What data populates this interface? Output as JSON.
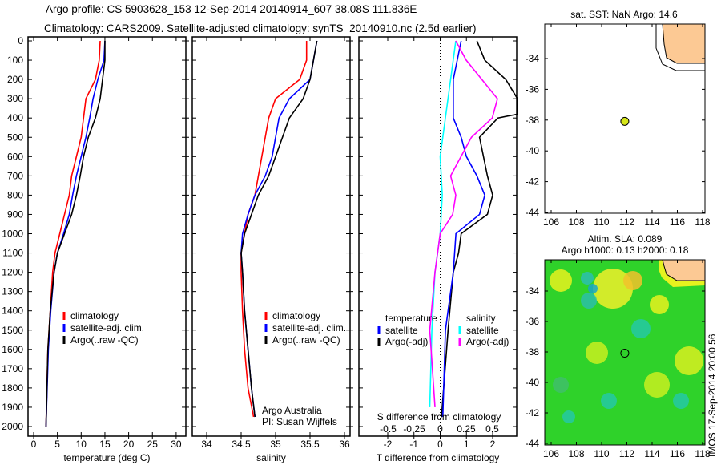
{
  "title": {
    "line1": "Argo profile: CS 5903628_153 12-Sep-2014 20140914_607 38.08S 111.836E",
    "line2": "Climatology: CARS2009. Satellite-adjusted climatology: synTS_20140910.nc (2.5d earlier)"
  },
  "colors": {
    "climatology": "#ff0000",
    "satellite": "#0000ff",
    "argo": "#000000",
    "s_satellite": "#00ffff",
    "s_argo": "#ff00ff",
    "land": "#fcc994"
  },
  "chart_data": [
    {
      "type": "line",
      "name": "temperature",
      "xlabel": "temperature (deg C)",
      "xlim": [
        -1.5,
        31
      ],
      "xticks": [
        "0",
        "5",
        "10",
        "15",
        "20",
        "25",
        "30"
      ],
      "ylim": [
        0,
        2060
      ],
      "yticks": [
        "0",
        "100",
        "200",
        "300",
        "400",
        "500",
        "600",
        "700",
        "800",
        "900",
        "1000",
        "1100",
        "1200",
        "1300",
        "1400",
        "1500",
        "1600",
        "1700",
        "1800",
        "1900",
        "2000"
      ],
      "legend": [
        "climatology",
        "satellite-adj. clim.",
        "Argo(..raw -QC)"
      ],
      "series": [
        {
          "name": "climatology",
          "depth": [
            0,
            100,
            200,
            300,
            400,
            500,
            600,
            700,
            800,
            900,
            1000,
            1100,
            1200,
            1400,
            1600,
            2000
          ],
          "values": [
            14,
            13.8,
            13,
            11,
            10.5,
            10,
            9,
            8,
            7.5,
            6.5,
            5.5,
            4.5,
            4,
            3.5,
            3,
            2.6
          ]
        },
        {
          "name": "satellite",
          "depth": [
            0,
            100,
            200,
            300,
            400,
            500,
            600,
            700,
            800,
            900,
            1000,
            1100,
            1200,
            1400,
            1600,
            2000
          ],
          "values": [
            15,
            14.8,
            13.5,
            12.5,
            11.8,
            11,
            10,
            9,
            8.2,
            7.5,
            6.3,
            5,
            4.3,
            3.6,
            3.1,
            2.6
          ]
        },
        {
          "name": "argo",
          "depth": [
            0,
            100,
            200,
            300,
            400,
            500,
            600,
            700,
            800,
            900,
            1000,
            1100,
            1200,
            1400,
            1600,
            2000
          ],
          "values": [
            15,
            15,
            14.5,
            14,
            13,
            11.5,
            10.5,
            9.8,
            9,
            8,
            6.5,
            5,
            4.3,
            3.5,
            3,
            2.6
          ]
        }
      ]
    },
    {
      "type": "line",
      "name": "salinity",
      "xlabel": "salinity",
      "xlim": [
        33.8,
        36.1
      ],
      "xticks": [
        "34",
        "34.5",
        "35",
        "35.5",
        "36"
      ],
      "legend": [
        "climatology",
        "satellite-adj. clim.",
        "Argo(..raw -QC)"
      ],
      "annotation": [
        "Argo Australia",
        "PI: Susan Wijffels"
      ],
      "series": [
        {
          "name": "climatology",
          "depth": [
            0,
            100,
            200,
            300,
            400,
            500,
            600,
            700,
            800,
            900,
            1000,
            1100,
            1200,
            1400,
            1600,
            1800,
            1950
          ],
          "values": [
            35.45,
            35.45,
            35.35,
            35.0,
            34.9,
            34.85,
            34.8,
            34.75,
            34.7,
            34.6,
            34.55,
            34.5,
            34.5,
            34.52,
            34.55,
            34.6,
            34.68
          ]
        },
        {
          "name": "satellite",
          "depth": [
            0,
            100,
            200,
            300,
            400,
            500,
            600,
            700,
            800,
            900,
            1000,
            1100,
            1200,
            1400,
            1600,
            1800,
            1950
          ],
          "values": [
            35.6,
            35.55,
            35.5,
            35.2,
            35.05,
            35.0,
            34.95,
            34.85,
            34.7,
            34.6,
            34.52,
            34.5,
            34.52,
            34.55,
            34.6,
            34.65,
            34.7
          ]
        },
        {
          "name": "argo",
          "depth": [
            0,
            100,
            200,
            300,
            400,
            500,
            600,
            700,
            800,
            900,
            1000,
            1100,
            1200,
            1400,
            1600,
            1800,
            1950
          ],
          "values": [
            35.6,
            35.55,
            35.5,
            35.4,
            35.2,
            35.1,
            35.0,
            34.9,
            34.75,
            34.65,
            34.55,
            34.5,
            34.52,
            34.55,
            34.6,
            34.65,
            34.7
          ]
        }
      ]
    },
    {
      "type": "line",
      "name": "difference",
      "xlabel": "T difference from climatology",
      "xlabel_top": "S difference from climatology",
      "xlim": [
        -3,
        3
      ],
      "xticks": [
        "-2",
        "-1",
        "0",
        "1",
        "2"
      ],
      "xticks_s": [
        "-0.5",
        "-0.25",
        "0",
        "0.25",
        "0.5"
      ],
      "legend": {
        "temperature": "temperature",
        "salinity": "salinity",
        "t_sat": "satellite",
        "t_argo": "Argo(-adj)",
        "s_sat": "satellite",
        "s_argo": "Argo(-adj)"
      },
      "series": [
        {
          "name": "T argo-adj",
          "unit": "T",
          "depth": [
            0,
            100,
            200,
            300,
            380,
            400,
            500,
            700,
            800,
            900,
            1000,
            1100,
            1200,
            1500,
            1950
          ],
          "values": [
            1.4,
            1.7,
            2.5,
            3,
            3,
            2.2,
            1.5,
            1.8,
            2,
            1.8,
            0.8,
            0.7,
            0.5,
            0.3,
            0.05
          ]
        },
        {
          "name": "T satellite",
          "unit": "T",
          "depth": [
            0,
            200,
            400,
            500,
            600,
            700,
            800,
            900,
            1000,
            1200,
            1500,
            1950
          ],
          "values": [
            0.8,
            0.5,
            0.5,
            0.8,
            1,
            1.4,
            1.7,
            1.5,
            0.6,
            0.5,
            0.2,
            0.1
          ]
        },
        {
          "name": "S satellite",
          "unit": "S",
          "depth": [
            0,
            200,
            400,
            600,
            800,
            1000,
            1200,
            1500,
            1900
          ],
          "values": [
            0.15,
            0.1,
            0.05,
            0,
            0.02,
            0,
            -0.05,
            -0.08,
            -0.1
          ]
        },
        {
          "name": "S argo-adj",
          "unit": "S",
          "depth": [
            0,
            100,
            200,
            300,
            400,
            500,
            600,
            700,
            800,
            900,
            1000,
            1200,
            1500,
            1900
          ],
          "values": [
            0.15,
            0.25,
            0.4,
            0.55,
            0.5,
            0.3,
            0.2,
            0.1,
            0.15,
            0.12,
            0,
            -0.05,
            -0.1,
            -0.05
          ]
        }
      ]
    }
  ],
  "map_sst": {
    "title": "sat. SST: NaN Argo: 14.6",
    "xticks": [
      "106",
      "108",
      "110",
      "112",
      "114",
      "116",
      "118"
    ],
    "yticks": [
      "-34",
      "-36",
      "-38",
      "-40",
      "-42",
      "-44"
    ],
    "float_lon": 111.836,
    "float_lat": -38.08
  },
  "map_sla": {
    "title1": "Altim. SLA: 0.089",
    "title2": "Argo h1000: 0.13 h2000: 0.18",
    "xticks": [
      "106",
      "108",
      "110",
      "112",
      "114",
      "116",
      "118"
    ],
    "yticks": [
      "-34",
      "-36",
      "-38",
      "-40",
      "-42",
      "-44"
    ],
    "credit": "IMOS 17-Sep-2014 20:00:56"
  }
}
